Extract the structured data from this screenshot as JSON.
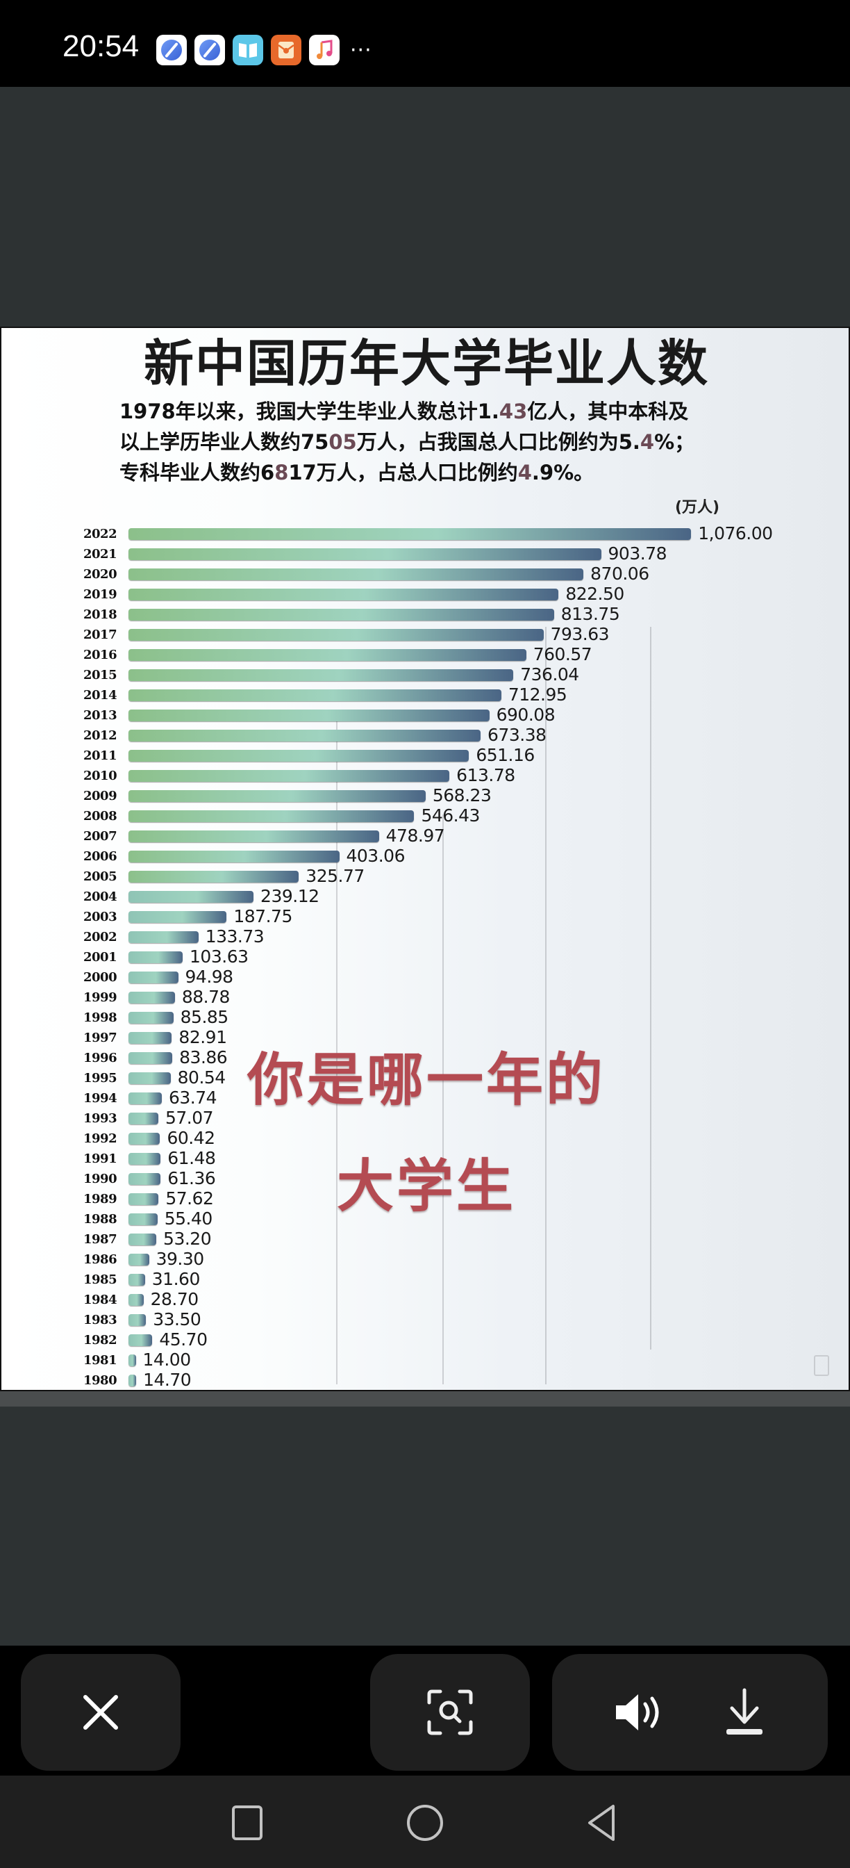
{
  "status_bar": {
    "time": "20:54",
    "notification_icons": [
      "browser-planet-icon",
      "browser-planet-icon",
      "book-reader-icon",
      "red-packet-icon",
      "music-icon"
    ],
    "overflow": "···"
  },
  "chart_image": {
    "title": "新中国历年大学毕业人数",
    "description": {
      "line1_a": "1978年以来，我国大学生毕业人数总计1.",
      "line1_hl": "43",
      "line1_b": "亿人，其中本科及",
      "line2_a": "以上学历毕业人数约75",
      "line2_hl": "05",
      "line2_b": "万人，占我国总人口比例约为5.",
      "line2_hl2": "4",
      "line2_c": "%；",
      "line3_a": "专科毕业人数约6",
      "line3_hl": "8",
      "line3_b": "17万人，占总人口比例约",
      "line3_hl2": "4",
      "line3_c": ".9%。"
    },
    "unit": "(万人)",
    "overlay_line1": "你是哪一年的",
    "overlay_line2": "大学生"
  },
  "chart_data": {
    "type": "bar",
    "orientation": "horizontal",
    "title": "新中国历年大学毕业人数",
    "subtitle": "1978年以来，我国大学生毕业人数总计1.43亿人，其中本科及以上学历毕业人数约7505万人，占我国总人口比例约为5.4%；专科毕业人数约6817万人，占总人口比例约4.9%。",
    "xlabel": "",
    "ylabel": "",
    "unit": "万人",
    "categories": [
      "2022",
      "2021",
      "2020",
      "2019",
      "2018",
      "2017",
      "2016",
      "2015",
      "2014",
      "2013",
      "2012",
      "2011",
      "2010",
      "2009",
      "2008",
      "2007",
      "2006",
      "2005",
      "2004",
      "2003",
      "2002",
      "2001",
      "2000",
      "1999",
      "1998",
      "1997",
      "1996",
      "1995",
      "1994",
      "1993",
      "1992",
      "1991",
      "1990",
      "1989",
      "1988",
      "1987",
      "1986",
      "1985",
      "1984",
      "1983",
      "1982",
      "1981",
      "1980"
    ],
    "values": [
      1076.0,
      903.78,
      870.06,
      822.5,
      813.75,
      793.63,
      760.57,
      736.04,
      712.95,
      690.08,
      673.38,
      651.16,
      613.78,
      568.23,
      546.43,
      478.97,
      403.06,
      325.77,
      239.12,
      187.75,
      133.73,
      103.63,
      94.98,
      88.78,
      85.85,
      82.91,
      83.86,
      80.54,
      63.74,
      57.07,
      60.42,
      61.48,
      61.36,
      57.62,
      55.4,
      53.2,
      39.3,
      31.6,
      28.7,
      33.5,
      45.7,
      14.0,
      14.7
    ],
    "labels": [
      "1,076.00",
      "903.78",
      "870.06",
      "822.50",
      "813.75",
      "793.63",
      "760.57",
      "736.04",
      "712.95",
      "690.08",
      "673.38",
      "651.16",
      "613.78",
      "568.23",
      "546.43",
      "478.97",
      "403.06",
      "325.77",
      "239.12",
      "187.75",
      "133.73",
      "103.63",
      "94.98",
      "88.78",
      "85.85",
      "82.91",
      "83.86",
      "80.54",
      "63.74",
      "57.07",
      "60.42",
      "61.48",
      "61.36",
      "57.62",
      "55.40",
      "53.20",
      "39.30",
      "31.60",
      "28.70",
      "33.50",
      "45.70",
      "14.00",
      "14.70"
    ],
    "xlim": [
      0,
      1100
    ],
    "grid": false,
    "legend": null,
    "bar_gradient": [
      "#8cc08a",
      "#9fd3c0",
      "#4a6585"
    ]
  },
  "toolbar": {
    "close_icon": "close-icon",
    "scan_icon": "image-search-icon",
    "sound_icon": "speaker-icon",
    "download_icon": "download-icon"
  },
  "navbar": {
    "recents_icon": "square-icon",
    "home_icon": "circle-icon",
    "back_icon": "triangle-back-icon"
  }
}
